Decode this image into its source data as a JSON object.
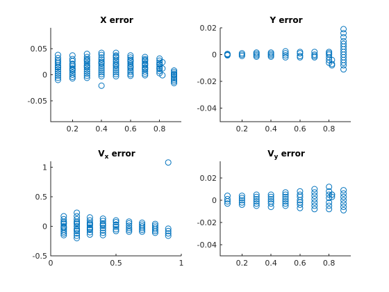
{
  "figure": {
    "background": "#ffffff",
    "marker_color": "#0072bd"
  },
  "chart_data": [
    {
      "type": "scatter",
      "title": "X error",
      "title_main": "X error",
      "title_sub": "",
      "title_tail": "",
      "xlim": [
        0.05,
        0.95
      ],
      "ylim": [
        -0.09,
        0.09
      ],
      "xticks": [
        0.2,
        0.4,
        0.6,
        0.8
      ],
      "xtick_labels": [
        "0.2",
        "0.4",
        "0.6",
        "0.8"
      ],
      "yticks": [
        0.05,
        0,
        -0.05
      ],
      "ytick_labels": [
        "0.05",
        "0",
        "-0.05"
      ],
      "xlabel": "",
      "ylabel": "",
      "marker": "open-circle",
      "series": [
        {
          "x": [
            0.1,
            0.1,
            0.1,
            0.1,
            0.1,
            0.1,
            0.1,
            0.1,
            0.1,
            0.1,
            0.1,
            0.1,
            0.1,
            0.1,
            0.2,
            0.2,
            0.2,
            0.2,
            0.2,
            0.2,
            0.2,
            0.2,
            0.2,
            0.2,
            0.2,
            0.2,
            0.2,
            0.3,
            0.3,
            0.3,
            0.3,
            0.3,
            0.3,
            0.3,
            0.3,
            0.3,
            0.3,
            0.3,
            0.3,
            0.3,
            0.3,
            0.4,
            0.4,
            0.4,
            0.4,
            0.4,
            0.4,
            0.4,
            0.4,
            0.4,
            0.4,
            0.4,
            0.4,
            0.4,
            0.4,
            0.5,
            0.5,
            0.5,
            0.5,
            0.5,
            0.5,
            0.5,
            0.5,
            0.5,
            0.5,
            0.5,
            0.5,
            0.5,
            0.5,
            0.6,
            0.6,
            0.6,
            0.6,
            0.6,
            0.6,
            0.6,
            0.6,
            0.6,
            0.6,
            0.6,
            0.6,
            0.6,
            0.7,
            0.7,
            0.7,
            0.7,
            0.7,
            0.7,
            0.7,
            0.7,
            0.7,
            0.7,
            0.7,
            0.7,
            0.7,
            0.8,
            0.8,
            0.8,
            0.8,
            0.8,
            0.8,
            0.8,
            0.8,
            0.8,
            0.8,
            0.82,
            0.82,
            0.82,
            0.9,
            0.9,
            0.9,
            0.9,
            0.9,
            0.9,
            0.9,
            0.9,
            0.9,
            0.9
          ],
          "y": [
            0.038,
            0.032,
            0.028,
            0.022,
            0.018,
            0.014,
            0.01,
            0.006,
            0.002,
            -0.002,
            -0.006,
            -0.01,
            0.025,
            0.015,
            0.037,
            0.03,
            0.026,
            0.021,
            0.016,
            0.012,
            0.008,
            0.004,
            0.0,
            -0.004,
            -0.007,
            0.019,
            0.01,
            0.04,
            0.034,
            0.03,
            0.026,
            0.022,
            0.018,
            0.014,
            0.01,
            0.006,
            0.002,
            -0.002,
            -0.006,
            0.028,
            0.016,
            0.042,
            0.038,
            0.033,
            0.029,
            0.025,
            0.021,
            0.017,
            0.013,
            0.009,
            0.005,
            0.001,
            -0.003,
            -0.021,
            0.023,
            0.042,
            0.037,
            0.033,
            0.029,
            0.025,
            0.021,
            0.017,
            0.013,
            0.009,
            0.005,
            0.001,
            -0.003,
            0.035,
            0.019,
            0.037,
            0.033,
            0.029,
            0.025,
            0.021,
            0.017,
            0.013,
            0.009,
            0.005,
            0.001,
            -0.002,
            0.027,
            0.015,
            0.034,
            0.03,
            0.026,
            0.022,
            0.018,
            0.014,
            0.01,
            0.006,
            0.002,
            -0.001,
            0.028,
            0.02,
            0.012,
            0.031,
            0.027,
            0.023,
            0.019,
            0.015,
            0.011,
            0.007,
            0.003,
            0.02,
            0.012,
            0.024,
            0.012,
            -0.001,
            0.008,
            0.005,
            0.002,
            -0.001,
            -0.004,
            -0.007,
            -0.01,
            -0.013,
            -0.016,
            0.0
          ]
        }
      ]
    },
    {
      "type": "scatter",
      "title": "Y error",
      "title_main": "Y error",
      "title_sub": "",
      "title_tail": "",
      "xlim": [
        0.05,
        0.95
      ],
      "ylim": [
        -0.05,
        0.02
      ],
      "xticks": [
        0.2,
        0.4,
        0.6,
        0.8
      ],
      "xtick_labels": [
        "0.2",
        "0.4",
        "0.6",
        "0.8"
      ],
      "yticks": [
        0.02,
        0,
        -0.02,
        -0.04
      ],
      "ytick_labels": [
        "0.02",
        "0",
        "-0.02",
        "-0.04"
      ],
      "xlabel": "",
      "ylabel": "",
      "marker": "open-circle",
      "series": [
        {
          "x": [
            0.1,
            0.1,
            0.1,
            0.2,
            0.2,
            0.2,
            0.3,
            0.3,
            0.3,
            0.3,
            0.4,
            0.4,
            0.4,
            0.4,
            0.5,
            0.5,
            0.5,
            0.5,
            0.6,
            0.6,
            0.6,
            0.6,
            0.7,
            0.7,
            0.7,
            0.7,
            0.8,
            0.8,
            0.8,
            0.8,
            0.8,
            0.8,
            0.82,
            0.82,
            0.82,
            0.9,
            0.9,
            0.9,
            0.9,
            0.9,
            0.9,
            0.9,
            0.9,
            0.9,
            0.9,
            0.9,
            0.9,
            0.9,
            0.9
          ],
          "y": [
            0.0005,
            0.0,
            -0.0005,
            0.001,
            0.0,
            -0.001,
            0.0015,
            0.0005,
            -0.0005,
            -0.0015,
            0.0015,
            0.0005,
            -0.0005,
            -0.0015,
            0.0025,
            0.001,
            -0.0005,
            -0.002,
            0.002,
            0.001,
            -0.001,
            -0.002,
            0.002,
            0.0,
            -0.002,
            -0.001,
            0.002,
            0.0,
            -0.002,
            -0.004,
            -0.006,
            0.001,
            -0.004,
            -0.007,
            -0.008,
            0.019,
            0.016,
            0.013,
            0.01,
            0.008,
            0.006,
            0.004,
            0.002,
            0.0,
            -0.002,
            -0.004,
            -0.006,
            -0.008,
            -0.011
          ]
        }
      ]
    },
    {
      "type": "scatter",
      "title": "Vx error",
      "title_main": "V",
      "title_sub": "x",
      "title_tail": " error",
      "xlim": [
        0,
        1
      ],
      "ylim": [
        -0.5,
        1.1
      ],
      "xticks": [
        0,
        0.5,
        1
      ],
      "xtick_labels": [
        "0",
        "0.5",
        "1"
      ],
      "yticks": [
        1,
        0.5,
        0,
        -0.5
      ],
      "ytick_labels": [
        "1",
        "0.5",
        "0",
        "-0.5"
      ],
      "xlabel": "",
      "ylabel": "",
      "marker": "open-circle",
      "series": [
        {
          "x": [
            0.1,
            0.1,
            0.1,
            0.1,
            0.1,
            0.1,
            0.1,
            0.1,
            0.1,
            0.1,
            0.1,
            0.1,
            0.2,
            0.2,
            0.2,
            0.2,
            0.2,
            0.2,
            0.2,
            0.2,
            0.2,
            0.2,
            0.2,
            0.2,
            0.2,
            0.3,
            0.3,
            0.3,
            0.3,
            0.3,
            0.3,
            0.3,
            0.3,
            0.3,
            0.3,
            0.4,
            0.4,
            0.4,
            0.4,
            0.4,
            0.4,
            0.4,
            0.4,
            0.4,
            0.5,
            0.5,
            0.5,
            0.5,
            0.5,
            0.5,
            0.5,
            0.6,
            0.6,
            0.6,
            0.6,
            0.6,
            0.6,
            0.7,
            0.7,
            0.7,
            0.7,
            0.7,
            0.7,
            0.8,
            0.8,
            0.8,
            0.8,
            0.8,
            0.8,
            0.9,
            0.9,
            0.9,
            0.9,
            0.9
          ],
          "y": [
            0.17,
            0.12,
            0.08,
            0.04,
            0.0,
            -0.03,
            -0.06,
            -0.09,
            -0.12,
            -0.15,
            0.06,
            -0.02,
            0.23,
            0.17,
            0.12,
            0.08,
            0.04,
            0.0,
            -0.04,
            -0.08,
            -0.12,
            -0.16,
            -0.2,
            0.06,
            -0.06,
            0.15,
            0.1,
            0.06,
            0.02,
            -0.02,
            -0.06,
            -0.1,
            -0.14,
            0.04,
            -0.04,
            0.13,
            0.09,
            0.05,
            0.01,
            -0.03,
            -0.07,
            -0.11,
            -0.15,
            0.03,
            0.1,
            0.07,
            0.03,
            -0.01,
            -0.05,
            -0.08,
            0.02,
            0.08,
            0.05,
            0.01,
            -0.03,
            -0.06,
            -0.09,
            0.06,
            0.03,
            0.0,
            -0.03,
            -0.06,
            -0.09,
            0.04,
            0.01,
            -0.02,
            -0.05,
            -0.08,
            -0.11,
            1.08,
            -0.04,
            -0.08,
            -0.12,
            -0.16
          ]
        }
      ]
    },
    {
      "type": "scatter",
      "title": "Vy error",
      "title_main": "V",
      "title_sub": "y",
      "title_tail": " error",
      "xlim": [
        0.05,
        0.95
      ],
      "ylim": [
        -0.05,
        0.035
      ],
      "xticks": [
        0.2,
        0.4,
        0.6,
        0.8
      ],
      "xtick_labels": [
        "0.2",
        "0.4",
        "0.6",
        "0.8"
      ],
      "yticks": [
        0.02,
        0,
        -0.02,
        -0.04
      ],
      "ytick_labels": [
        "0.02",
        "0",
        "-0.02",
        "-0.04"
      ],
      "xlabel": "",
      "ylabel": "",
      "marker": "open-circle",
      "series": [
        {
          "x": [
            0.1,
            0.1,
            0.1,
            0.1,
            0.2,
            0.2,
            0.2,
            0.2,
            0.2,
            0.3,
            0.3,
            0.3,
            0.3,
            0.3,
            0.3,
            0.4,
            0.4,
            0.4,
            0.4,
            0.4,
            0.4,
            0.5,
            0.5,
            0.5,
            0.5,
            0.5,
            0.5,
            0.5,
            0.6,
            0.6,
            0.6,
            0.6,
            0.6,
            0.6,
            0.6,
            0.7,
            0.7,
            0.7,
            0.7,
            0.7,
            0.7,
            0.7,
            0.8,
            0.8,
            0.8,
            0.8,
            0.8,
            0.8,
            0.8,
            0.82,
            0.82,
            0.82,
            0.9,
            0.9,
            0.9,
            0.9,
            0.9,
            0.9,
            0.9
          ],
          "y": [
            0.004,
            0.001,
            -0.001,
            -0.003,
            0.004,
            0.002,
            0.0,
            -0.002,
            -0.004,
            0.005,
            0.003,
            0.001,
            -0.001,
            -0.003,
            -0.005,
            0.005,
            0.003,
            0.001,
            -0.001,
            -0.003,
            -0.006,
            0.007,
            0.005,
            0.003,
            0.001,
            -0.001,
            -0.003,
            -0.005,
            0.008,
            0.005,
            0.003,
            0.0,
            -0.002,
            -0.004,
            -0.007,
            0.01,
            0.007,
            0.004,
            0.001,
            -0.002,
            -0.005,
            -0.008,
            0.012,
            0.008,
            0.005,
            0.002,
            -0.002,
            -0.005,
            -0.008,
            0.005,
            0.003,
            0.005,
            0.009,
            0.006,
            0.003,
            0.0,
            -0.003,
            -0.006,
            -0.009
          ]
        }
      ]
    }
  ]
}
